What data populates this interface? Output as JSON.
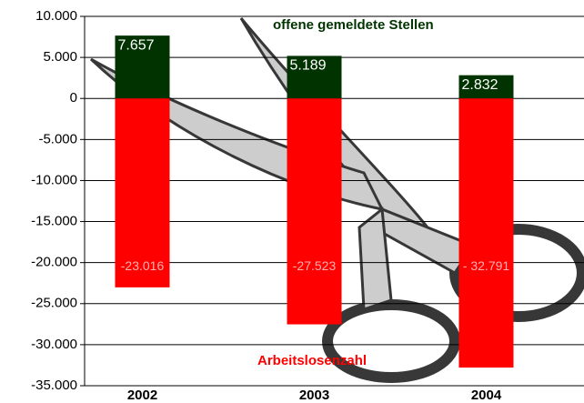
{
  "chart_data": {
    "type": "bar",
    "categories": [
      "2002",
      "2003",
      "2004"
    ],
    "series": [
      {
        "name": "offene gemeldete Stellen",
        "color": "#003300",
        "values": [
          7657,
          5189,
          2832
        ],
        "value_labels": [
          "7.657",
          "5.189",
          "2.832"
        ]
      },
      {
        "name": "Arbeitslosenzahl",
        "color": "#ff0000",
        "values": [
          -23016,
          -27523,
          -32791
        ],
        "value_labels": [
          "-23.016",
          "-27.523",
          "- 32.791"
        ]
      }
    ],
    "ylim": [
      -35000,
      10000
    ],
    "yticks": [
      {
        "value": 10000,
        "label": "10.000"
      },
      {
        "value": 5000,
        "label": "5.000"
      },
      0,
      {
        "value": -5000,
        "label": "-5.000"
      },
      {
        "value": -10000,
        "label": "-10.000"
      },
      {
        "value": -15000,
        "label": "-15.000"
      },
      {
        "value": -20000,
        "label": "-20.000"
      },
      {
        "value": -25000,
        "label": "-25.000"
      },
      {
        "value": -30000,
        "label": "-30.000"
      },
      {
        "value": -35000,
        "label": "-35.000"
      }
    ],
    "grid": true
  }
}
